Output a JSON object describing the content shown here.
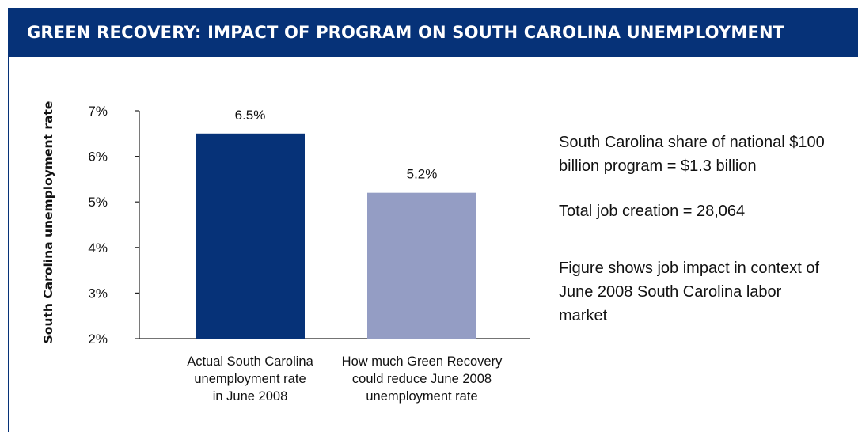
{
  "header": {
    "title": "GREEN RECOVERY: IMPACT OF PROGRAM ON SOUTH CAROLINA UNEMPLOYMENT"
  },
  "colors": {
    "header_bg": "#063278",
    "bar_actual": "#063278",
    "bar_reduced": "#949dc4"
  },
  "chart_data": {
    "type": "bar",
    "categories": [
      "Actual South Carolina unemployment rate in June 2008",
      "How much Green Recovery could reduce June 2008 unemployment rate"
    ],
    "category_lines": [
      [
        "Actual South Carolina",
        "unemployment rate",
        "in June 2008"
      ],
      [
        "How much Green Recovery",
        "could reduce June 2008",
        "unemployment rate"
      ]
    ],
    "values": [
      6.5,
      5.2
    ],
    "data_labels": [
      "6.5%",
      "5.2%"
    ],
    "ylabel": "South Carolina unemployment rate",
    "ylim": [
      2,
      7
    ],
    "yticks": [
      2,
      3,
      4,
      5,
      6,
      7
    ],
    "ytick_labels": [
      "2%",
      "3%",
      "4%",
      "5%",
      "6%",
      "7%"
    ],
    "grid": false
  },
  "notes": {
    "share": "South Carolina share of national $100 billion program = $1.3 billion",
    "jobs": "Total job creation = 28,064",
    "context": "Figure shows job impact in context of June 2008 South Carolina labor market"
  }
}
